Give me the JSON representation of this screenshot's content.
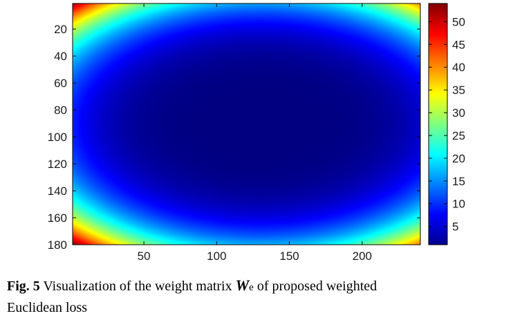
{
  "chart_data": {
    "type": "heatmap",
    "title": "",
    "xlabel": "",
    "ylabel": "",
    "x_range": [
      1,
      240
    ],
    "y_range": [
      1,
      180
    ],
    "y_reversed": true,
    "x_ticks": [
      50,
      100,
      150,
      200
    ],
    "y_ticks": [
      20,
      40,
      60,
      80,
      100,
      120,
      140,
      160,
      180
    ],
    "color_range": [
      1,
      54
    ],
    "colormap": "jet",
    "colorbar_ticks": [
      5,
      10,
      15,
      20,
      25,
      30,
      35,
      40,
      45,
      50
    ],
    "center": [
      130,
      90
    ],
    "values_description_samples": [
      {
        "x": 130,
        "y": 90,
        "value": 1
      },
      {
        "x": 130,
        "y": 1,
        "value": 5
      },
      {
        "x": 1,
        "y": 90,
        "value": 8
      },
      {
        "x": 1,
        "y": 1,
        "value": 54
      },
      {
        "x": 240,
        "y": 180,
        "value": 54
      }
    ]
  },
  "caption": {
    "label": "Fig. 5",
    "text_before": "Visualization of the weight matrix",
    "symbol": "W",
    "subscript": "e",
    "text_after": "of proposed weighted",
    "line2": "Euclidean loss"
  }
}
